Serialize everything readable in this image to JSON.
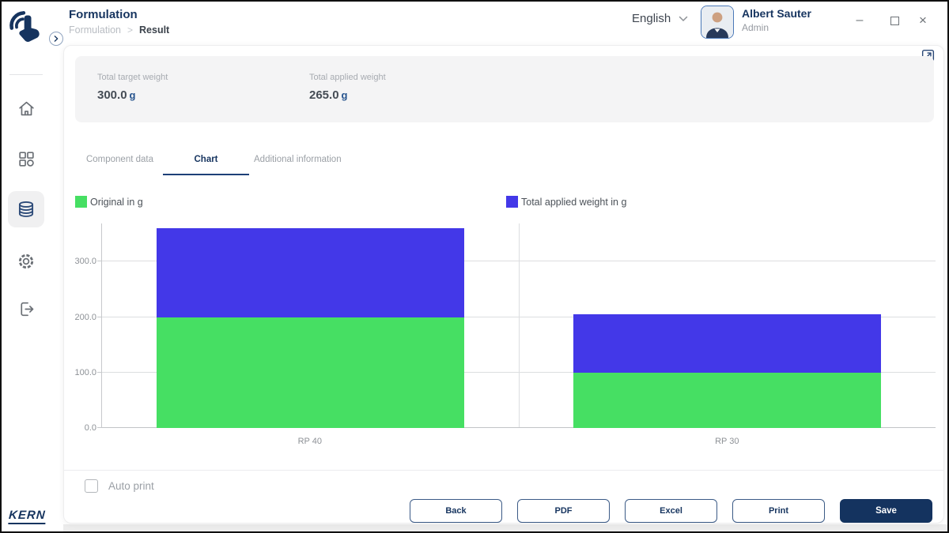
{
  "window": {
    "minimize_label": "–",
    "close_label": "×"
  },
  "header": {
    "title": "Formulation",
    "breadcrumb": {
      "parent": "Formulation",
      "separator": ">",
      "current": "Result"
    },
    "language": {
      "selected": "English"
    },
    "user": {
      "name": "Albert Sauter",
      "role": "Admin"
    }
  },
  "sidebar": {
    "brand": "KERN",
    "items": [
      {
        "icon": "home-icon",
        "active": false
      },
      {
        "icon": "apps-icon",
        "active": false
      },
      {
        "icon": "database-icon",
        "active": true
      },
      {
        "icon": "settings-gear-icon",
        "active": false
      },
      {
        "icon": "logout-icon",
        "active": false
      }
    ]
  },
  "summary": {
    "fields": [
      {
        "label": "Total target weight",
        "value": "300.0",
        "unit": "g"
      },
      {
        "label": "Total applied weight",
        "value": "265.0",
        "unit": "g"
      }
    ]
  },
  "tabs": [
    {
      "label": "Component data",
      "active": false
    },
    {
      "label": "Chart",
      "active": true
    },
    {
      "label": "Additional information",
      "active": false
    }
  ],
  "chart_data": {
    "type": "bar",
    "stacked": true,
    "categories": [
      "RP 40",
      "RP 30"
    ],
    "series": [
      {
        "name": "Original in g",
        "color": "#46DF63",
        "values": [
          200.0,
          100.0
        ]
      },
      {
        "name": "Total applied weight in g",
        "color": "#4338E8",
        "values": [
          160.0,
          105.0
        ]
      }
    ],
    "title": "",
    "xlabel": "",
    "ylabel": "",
    "ylim": [
      0,
      369
    ],
    "yticks": [
      {
        "value": 0,
        "label": "0.0"
      },
      {
        "value": 100,
        "label": "100.0"
      },
      {
        "value": 200,
        "label": "200.0"
      },
      {
        "value": 300,
        "label": "300.0"
      }
    ],
    "grid": true,
    "legend_position": "top"
  },
  "footer": {
    "auto_print_label": "Auto print",
    "auto_print_checked": false,
    "buttons": [
      {
        "label": "Back",
        "style": "outline"
      },
      {
        "label": "PDF",
        "style": "outline"
      },
      {
        "label": "Excel",
        "style": "outline"
      },
      {
        "label": "Print",
        "style": "outline"
      },
      {
        "label": "Save",
        "style": "primary"
      }
    ]
  },
  "colors": {
    "accent_navy": "#14335F",
    "series_green": "#46DF63",
    "series_blue": "#4338E8"
  }
}
